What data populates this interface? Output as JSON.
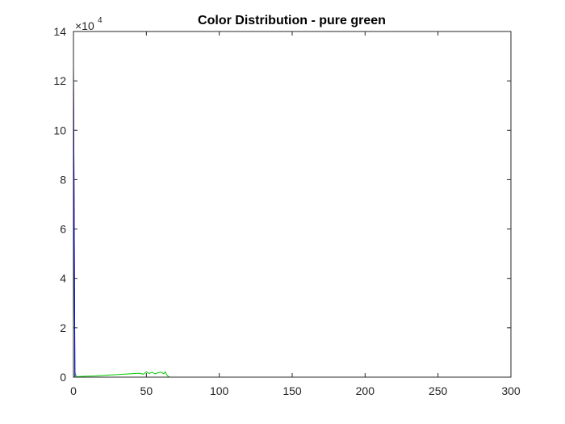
{
  "chart_data": {
    "type": "line",
    "title": "Color Distribution - pure green",
    "xlabel": "",
    "ylabel": "",
    "xlim": [
      0,
      300
    ],
    "ylim": [
      0,
      14
    ],
    "y_scale_note": "×10",
    "y_scale_exponent": "4",
    "x_ticks": [
      "0",
      "50",
      "100",
      "150",
      "200",
      "250",
      "300"
    ],
    "y_ticks": [
      "0",
      "2",
      "4",
      "6",
      "8",
      "10",
      "12",
      "14"
    ],
    "grid": false,
    "legend": "none",
    "series": [
      {
        "color": "#ff0000",
        "x": [
          0,
          1,
          2,
          255
        ],
        "y": [
          12.6,
          0.0,
          0.0,
          0.0
        ]
      },
      {
        "color": "#00cc00",
        "x": [
          0,
          1,
          2,
          5,
          10,
          15,
          20,
          25,
          30,
          35,
          40,
          45,
          48,
          50,
          52,
          54,
          56,
          58,
          60,
          62,
          63,
          64,
          65,
          66,
          70,
          100,
          255
        ],
        "y": [
          8.5,
          0.2,
          0.02,
          0.03,
          0.04,
          0.05,
          0.07,
          0.09,
          0.1,
          0.12,
          0.14,
          0.16,
          0.12,
          0.22,
          0.15,
          0.2,
          0.13,
          0.18,
          0.2,
          0.14,
          0.22,
          0.1,
          0.03,
          0.0,
          0.0,
          0.0,
          0.0
        ]
      },
      {
        "color": "#0000ff",
        "x": [
          0,
          1,
          2,
          255
        ],
        "y": [
          12.6,
          0.0,
          0.0,
          0.0
        ]
      }
    ]
  }
}
